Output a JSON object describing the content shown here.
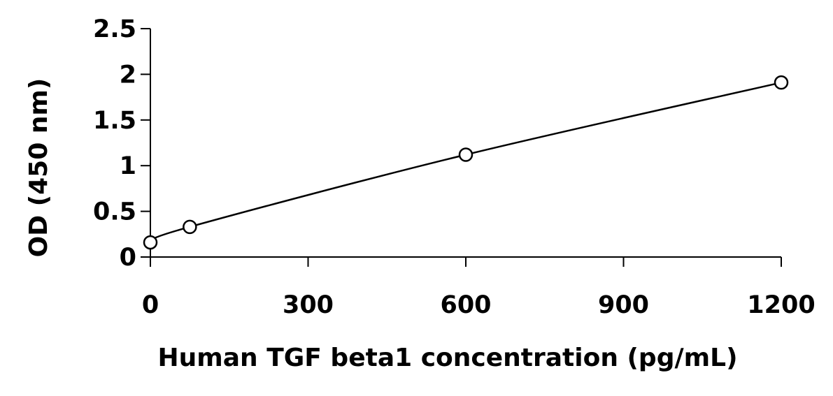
{
  "chart_data": {
    "type": "scatter",
    "title": "",
    "xlabel": "Human TGF beta1 concentration (pg/mL)",
    "ylabel": "OD (450 nm)",
    "xlim": [
      0,
      1200
    ],
    "ylim": [
      0,
      2.5
    ],
    "x_ticks": [
      0,
      300,
      600,
      900,
      1200
    ],
    "y_ticks": [
      0,
      0.5,
      1,
      1.5,
      2,
      2.5
    ],
    "x_tick_labels": [
      "0",
      "300",
      "600",
      "900",
      "1200"
    ],
    "y_tick_labels": [
      "0",
      "0.5",
      "1",
      "1.5",
      "2",
      "2.5"
    ],
    "grid": false,
    "legend": false,
    "series": [
      {
        "marker": "open-circle",
        "fit": "smooth-curve",
        "x": [
          0,
          75,
          600,
          1200
        ],
        "y": [
          0.16,
          0.33,
          1.12,
          1.91
        ]
      }
    ],
    "colors": {
      "line": "#000000",
      "marker_fill": "#ffffff",
      "marker_stroke": "#000000"
    }
  }
}
